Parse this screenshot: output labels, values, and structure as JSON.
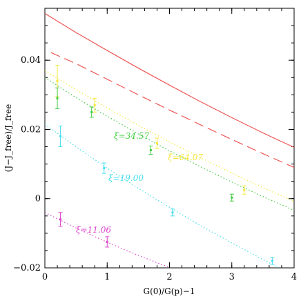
{
  "chart_data": {
    "type": "scatter",
    "xlabel": "G(0)/G(p)−1",
    "ylabel": "(J−J_free)/J_free",
    "xlim": [
      0,
      4
    ],
    "ylim": [
      -0.02,
      0.055
    ],
    "x_ticks": [
      "0",
      "1",
      "2",
      "3",
      "4"
    ],
    "y_ticks": [
      "−0.02",
      "0",
      "0.02",
      "0.04"
    ],
    "grid": false,
    "curves": [
      {
        "name": "",
        "style": "solid",
        "color": "#ee5555",
        "x": [
          0,
          0.5,
          1,
          1.5,
          2,
          2.5,
          3,
          3.5,
          4
        ],
        "y": [
          0.0535,
          0.048,
          0.0428,
          0.0377,
          0.0328,
          0.028,
          0.0234,
          0.019,
          0.0148
        ]
      },
      {
        "name": "",
        "style": "dashed",
        "color": "#ee5555",
        "x": [
          0.1,
          0.5,
          1,
          1.5,
          2,
          2.5,
          3,
          3.5,
          4
        ],
        "y": [
          0.0422,
          0.039,
          0.0345,
          0.03,
          0.0256,
          0.0213,
          0.0171,
          0.013,
          0.009
        ]
      }
    ],
    "series": [
      {
        "name": "ξ=64.07",
        "color": "#f5e63a",
        "label_text": "ξ=64.07",
        "points": [
          {
            "x": 0.2,
            "y": 0.034,
            "err": 0.0045
          },
          {
            "x": 0.8,
            "y": 0.027,
            "err": 0.002
          },
          {
            "x": 1.8,
            "y": 0.016,
            "err": 0.0015
          },
          {
            "x": 3.2,
            "y": 0.0025,
            "err": 0.0012
          }
        ],
        "fit_x": [
          0,
          0.5,
          1,
          1.5,
          2,
          2.5,
          3,
          3.5,
          4
        ],
        "fit_y": [
          0.037,
          0.0315,
          0.0262,
          0.0212,
          0.0164,
          0.0118,
          0.0074,
          0.0032,
          -0.0008
        ]
      },
      {
        "name": "ξ=34.57",
        "color": "#44cc44",
        "label_text": "ξ=34.57",
        "points": [
          {
            "x": 0.2,
            "y": 0.029,
            "err": 0.003
          },
          {
            "x": 0.75,
            "y": 0.025,
            "err": 0.0015
          },
          {
            "x": 1.7,
            "y": 0.014,
            "err": 0.0012
          },
          {
            "x": 3.0,
            "y": 0.0003,
            "err": 0.001
          }
        ],
        "fit_x": [
          0,
          0.5,
          1,
          1.5,
          2,
          2.5,
          3,
          3.5,
          4
        ],
        "fit_y": [
          0.035,
          0.0292,
          0.0238,
          0.0187,
          0.0138,
          0.0092,
          0.0048,
          0.0006,
          -0.0034
        ]
      },
      {
        "name": "ξ=19.00",
        "color": "#44ddee",
        "label_text": "ξ=19.00",
        "points": [
          {
            "x": 0.25,
            "y": 0.018,
            "err": 0.003
          },
          {
            "x": 0.95,
            "y": 0.0088,
            "err": 0.0015
          },
          {
            "x": 2.05,
            "y": -0.004,
            "err": 0.001
          },
          {
            "x": 3.65,
            "y": -0.018,
            "err": 0.001
          }
        ],
        "fit_x": [
          0,
          0.5,
          1,
          1.5,
          2,
          2.5,
          3,
          3.5,
          4
        ],
        "fit_y": [
          0.0215,
          0.015,
          0.0088,
          0.003,
          -0.0025,
          -0.0078,
          -0.0128,
          -0.0176,
          -0.0222
        ]
      },
      {
        "name": "ξ=11.06",
        "color": "#dd44cc",
        "label_text": "ξ=11.06",
        "points": [
          {
            "x": 0.25,
            "y": -0.006,
            "err": 0.002
          },
          {
            "x": 1.0,
            "y": -0.0125,
            "err": 0.0015
          }
        ],
        "fit_x": [
          0,
          0.5,
          1,
          1.5,
          2
        ],
        "fit_y": [
          -0.004,
          -0.0085,
          -0.0126,
          -0.0164,
          -0.0199
        ]
      }
    ]
  }
}
